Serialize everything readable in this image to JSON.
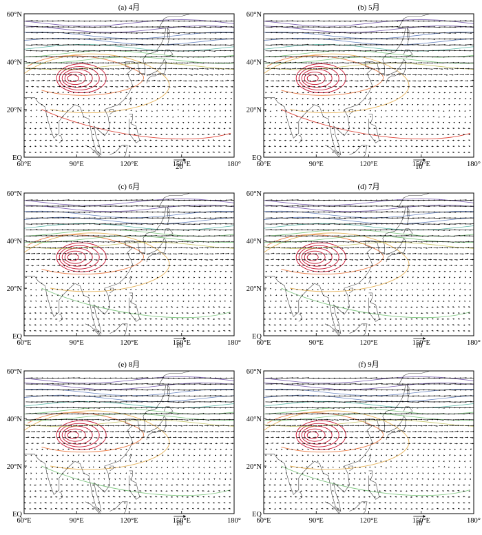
{
  "figure": {
    "background": "#ffffff",
    "vector_color": "#000000",
    "frame_color": "#000000",
    "coast_color": "#444444",
    "contour_palette": [
      "#c8102e",
      "#e0483c",
      "#ec7f4a",
      "#e7b45a",
      "#c8c86a",
      "#7ec77f",
      "#57b6a4",
      "#6a86c2",
      "#7b5fb0"
    ]
  },
  "chart_data": [
    {
      "id": "a",
      "type": "vector-contour-map",
      "title": "(a) 4月",
      "xlim": [
        60,
        180
      ],
      "ylim": [
        0,
        60
      ],
      "xticks": [
        "60°E",
        "90°E",
        "120°E",
        "150°E",
        "180°"
      ],
      "yticks": [
        "EQ",
        "20°N",
        "40°N",
        "60°N"
      ],
      "reference_vector": "20",
      "grid": false
    },
    {
      "id": "b",
      "type": "vector-contour-map",
      "title": "(b) 5月",
      "xlim": [
        60,
        180
      ],
      "ylim": [
        0,
        60
      ],
      "xticks": [
        "60°E",
        "90°E",
        "120°E",
        "150°E",
        "180°"
      ],
      "yticks": [
        "EQ",
        "20°N",
        "40°N",
        "60°N"
      ],
      "reference_vector": "10",
      "grid": false
    },
    {
      "id": "c",
      "type": "vector-contour-map",
      "title": "(c) 6月",
      "xlim": [
        60,
        180
      ],
      "ylim": [
        0,
        60
      ],
      "xticks": [
        "60°E",
        "90°E",
        "120°E",
        "150°E",
        "180°"
      ],
      "yticks": [
        "EQ",
        "20°N",
        "40°N",
        "60°N"
      ],
      "reference_vector": "10",
      "grid": false
    },
    {
      "id": "d",
      "type": "vector-contour-map",
      "title": "(d) 7月",
      "xlim": [
        60,
        180
      ],
      "ylim": [
        0,
        60
      ],
      "xticks": [
        "60°E",
        "90°E",
        "120°E",
        "150°E",
        "180°"
      ],
      "yticks": [
        "EQ",
        "20°N",
        "40°N",
        "60°N"
      ],
      "reference_vector": "10",
      "grid": false
    },
    {
      "id": "e",
      "type": "vector-contour-map",
      "title": "(e) 8月",
      "xlim": [
        60,
        180
      ],
      "ylim": [
        0,
        60
      ],
      "xticks": [
        "60°E",
        "90°E",
        "120°E",
        "150°E",
        "180°"
      ],
      "yticks": [
        "EQ",
        "20°N",
        "40°N",
        "60°N"
      ],
      "reference_vector": "10",
      "grid": false
    },
    {
      "id": "f",
      "type": "vector-contour-map",
      "title": "(f) 9月",
      "xlim": [
        60,
        180
      ],
      "ylim": [
        0,
        60
      ],
      "xticks": [
        "60°E",
        "90°E",
        "120°E",
        "150°E",
        "180°"
      ],
      "yticks": [
        "EQ",
        "20°N",
        "40°N",
        "60°N"
      ],
      "reference_vector": "10",
      "grid": false
    }
  ]
}
